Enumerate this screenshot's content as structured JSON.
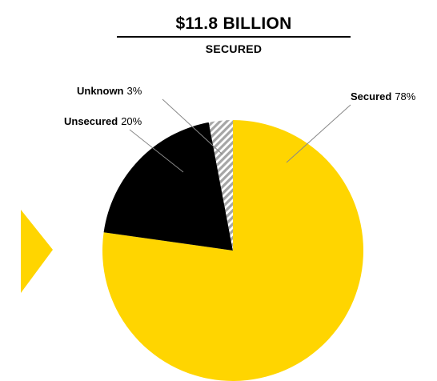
{
  "header": {
    "title": "$11.8 BILLION",
    "subtitle": "SECURED"
  },
  "colors": {
    "secured": "#FFD500",
    "unsecured": "#000000",
    "unknown": "#A6A6A6",
    "arrow": "#FFD500"
  },
  "chart_data": {
    "type": "pie",
    "title": "$11.8 BILLION",
    "subtitle": "SECURED",
    "slices": [
      {
        "name": "Secured",
        "value": 78,
        "label": "78%"
      },
      {
        "name": "Unsecured",
        "value": 20,
        "label": "20%"
      },
      {
        "name": "Unknown",
        "value": 3,
        "label": "3%"
      }
    ],
    "legend": "none"
  }
}
